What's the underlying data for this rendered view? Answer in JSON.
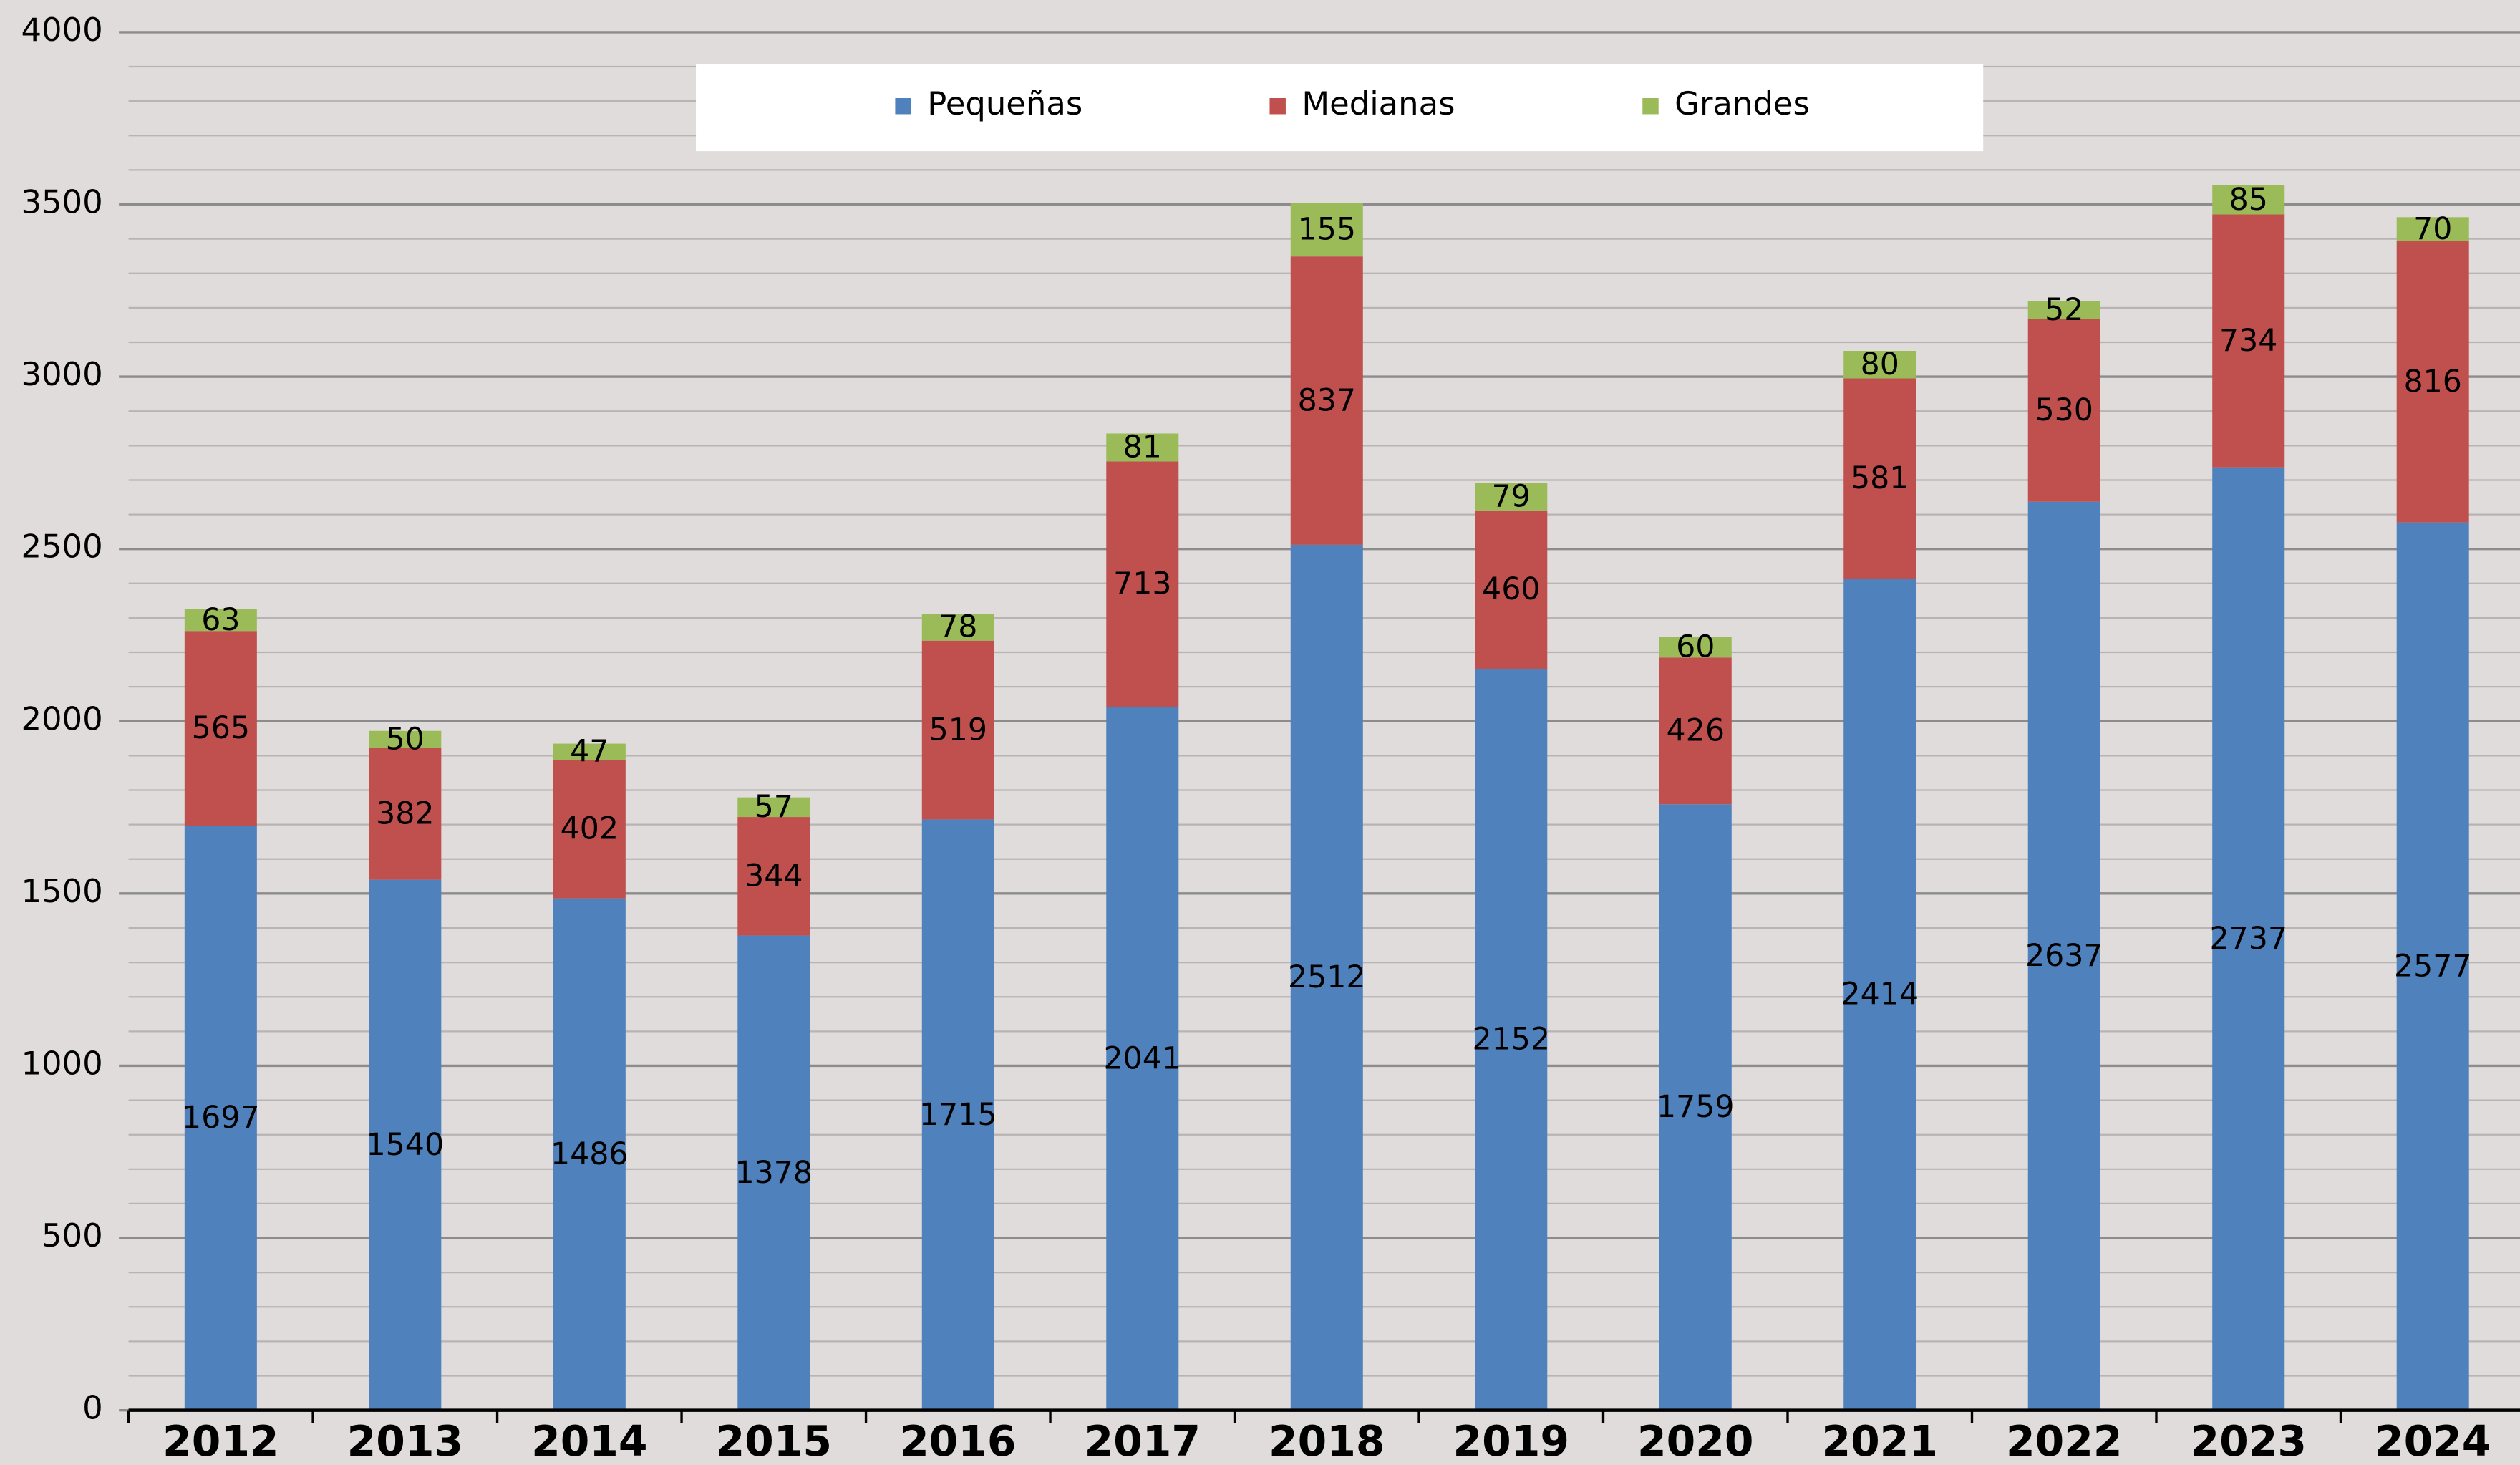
{
  "chart_data": {
    "type": "stacked_bar",
    "categories": [
      "2012",
      "2013",
      "2014",
      "2015",
      "2016",
      "2017",
      "2018",
      "2019",
      "2020",
      "2021",
      "2022",
      "2023",
      "2024"
    ],
    "series": [
      {
        "name": "Pequeñas",
        "color": "#4f81bd",
        "values": [
          1697,
          1540,
          1486,
          1378,
          1715,
          2041,
          2512,
          2152,
          1759,
          2414,
          2637,
          2737,
          2577
        ]
      },
      {
        "name": "Medianas",
        "color": "#c0504d",
        "values": [
          565,
          382,
          402,
          344,
          519,
          713,
          837,
          460,
          426,
          581,
          530,
          734,
          816
        ]
      },
      {
        "name": "Grandes",
        "color": "#9bbb59",
        "values": [
          63,
          50,
          47,
          57,
          78,
          81,
          155,
          79,
          60,
          80,
          52,
          85,
          70
        ]
      }
    ],
    "ylim": [
      0,
      4000
    ],
    "yticks": [
      0,
      500,
      1000,
      1500,
      2000,
      2500,
      3000,
      3500,
      4000
    ],
    "minor_yticks": [
      100,
      200,
      300,
      400,
      600,
      700,
      800,
      900,
      1100,
      1200,
      1300,
      1400,
      1600,
      1700,
      1800,
      1900,
      2100,
      2200,
      2300,
      2400,
      2600,
      2700,
      2800,
      2900,
      3100,
      3200,
      3300,
      3400,
      3600,
      3700,
      3800,
      3900
    ],
    "grid": true,
    "legend": "top"
  }
}
